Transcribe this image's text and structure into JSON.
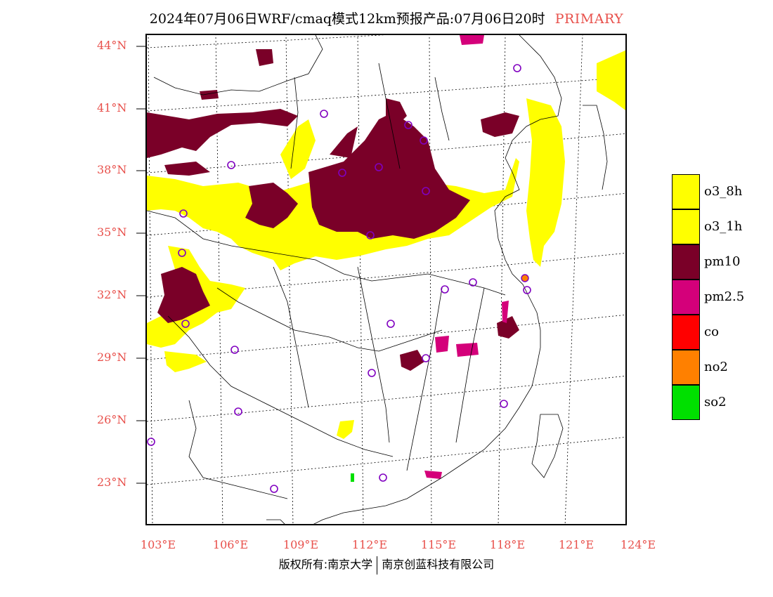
{
  "header": {
    "title": "2024年07月06日WRF/cmaq模式12km预报产品:07月06日20时",
    "tag": "PRIMARY"
  },
  "axes": {
    "lat_labels": [
      "44°N",
      "41°N",
      "38°N",
      "35°N",
      "32°N",
      "29°N",
      "26°N",
      "23°N"
    ],
    "lon_labels": [
      "103°E",
      "106°E",
      "109°E",
      "112°E",
      "115°E",
      "118°E",
      "121°E",
      "124°E"
    ]
  },
  "legend": [
    {
      "label": "o3_8h",
      "color": "#ffff00"
    },
    {
      "label": "o3_1h",
      "color": "#ffff00"
    },
    {
      "label": "pm10",
      "color": "#7a0028"
    },
    {
      "label": "pm2.5",
      "color": "#d4007a"
    },
    {
      "label": "co",
      "color": "#ff0000"
    },
    {
      "label": "no2",
      "color": "#ff8000"
    },
    {
      "label": "so2",
      "color": "#00e000"
    }
  ],
  "footer": {
    "left": "版权所有:南京大学",
    "right": "南京创蓝科技有限公司"
  }
}
